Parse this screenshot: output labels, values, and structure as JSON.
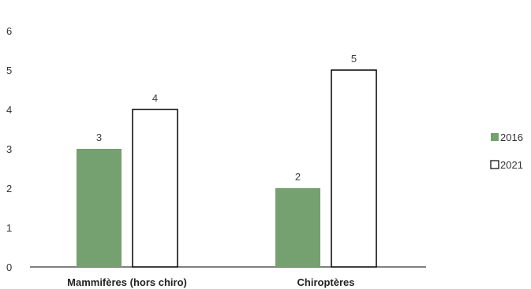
{
  "chart_data": {
    "type": "bar",
    "categories": [
      "Mammifères (hors chiro)",
      "Chiroptères"
    ],
    "series": [
      {
        "name": "2016",
        "values": [
          3,
          2
        ],
        "color": "#75a06f"
      },
      {
        "name": "2021",
        "values": [
          4,
          5
        ],
        "color": "#ffffff",
        "stroke": "#000000"
      }
    ],
    "y_ticks": [
      "0",
      "1",
      "2",
      "3",
      "4",
      "5",
      "6"
    ],
    "ylim": [
      0,
      6
    ],
    "grid": false,
    "legend_position": "right",
    "data_labels": true
  }
}
